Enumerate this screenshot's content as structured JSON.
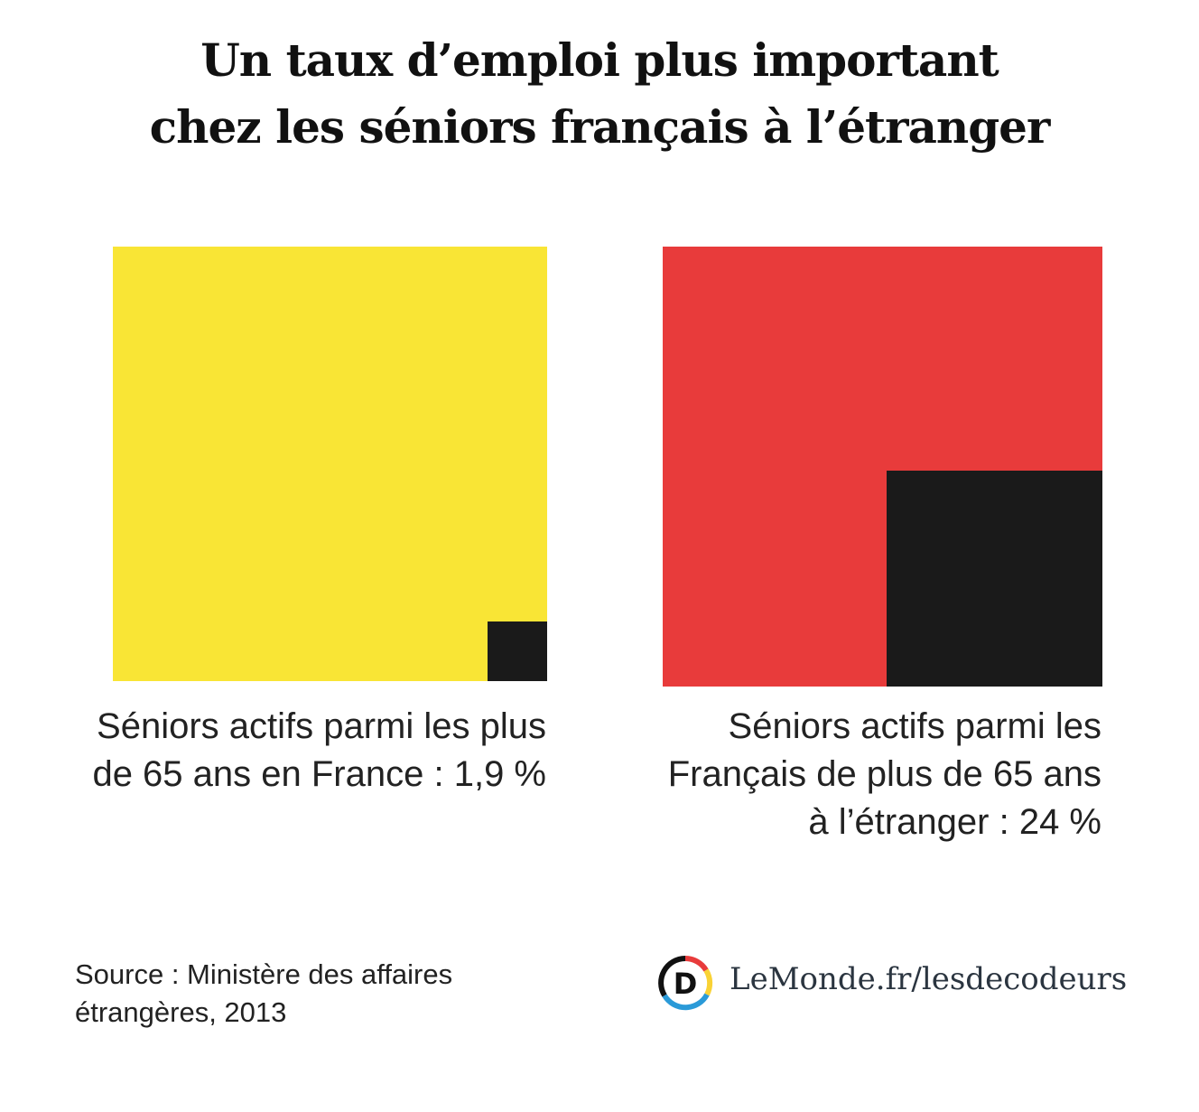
{
  "chart_data": {
    "type": "proportional-area",
    "title": "Un taux d’emploi plus important chez les séniors français à l’étranger",
    "title_lines": [
      "Un taux d’emploi plus important",
      "chez les séniors français à l’étranger"
    ],
    "unit": "%",
    "series": [
      {
        "label_lines": [
          "Séniors actifs parmi les plus",
          "de 65 ans en France : 1,9 %"
        ],
        "value": 1.9,
        "color": "#f9e535",
        "highlight_color": "#1a1a1a"
      },
      {
        "label_lines": [
          "Séniors actifs parmi les",
          "Français de plus de 65 ans",
          "à l’étranger : 24 %"
        ],
        "value": 24,
        "color": "#e83b3b",
        "highlight_color": "#1a1a1a"
      }
    ]
  },
  "source_lines": [
    "Source : Ministère des affaires",
    "étrangères, 2013"
  ],
  "brand": {
    "text": "LeMonde.fr/lesdecodeurs",
    "icon": "les-decodeurs-logo",
    "logo_letter": "D"
  }
}
